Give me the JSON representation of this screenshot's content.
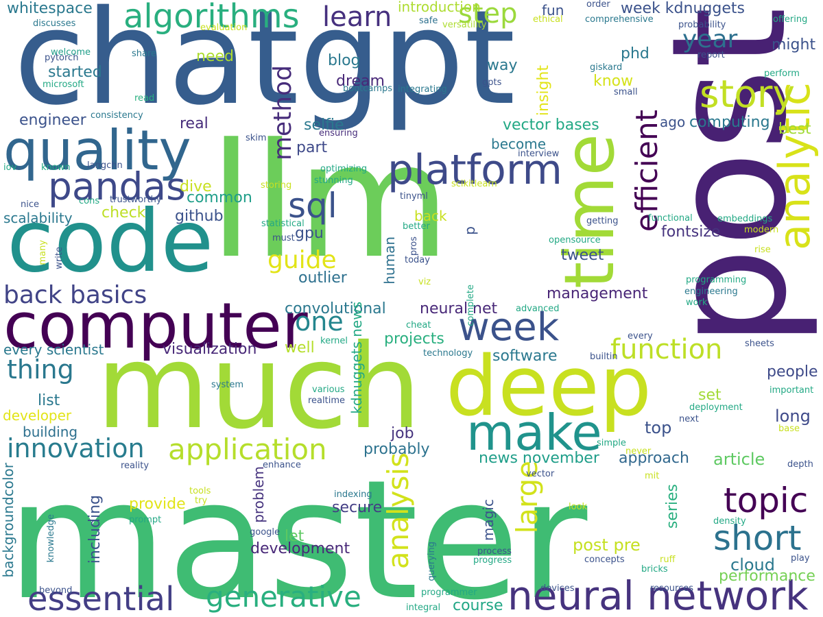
{
  "words": [
    {
      "text": "master",
      "color": "#3fbc73",
      "weight": 1.0
    },
    {
      "text": "chatgpt",
      "color": "#365d8d",
      "weight": 0.98
    },
    {
      "text": "llm",
      "color": "#6ccd5a",
      "weight": 0.96
    },
    {
      "text": "post",
      "color": "#482173",
      "weight": 0.95
    },
    {
      "text": "much",
      "color": "#a2da37",
      "weight": 0.9
    },
    {
      "text": "code",
      "color": "#21918c",
      "weight": 0.72
    },
    {
      "text": "deep",
      "color": "#c8e020",
      "weight": 0.7
    },
    {
      "text": "time",
      "color": "#a2da37",
      "weight": 0.66
    },
    {
      "text": "computer",
      "color": "#440154",
      "weight": 0.6
    },
    {
      "text": "quality",
      "color": "#31668e",
      "weight": 0.5
    },
    {
      "text": "analytic",
      "color": "#d8e219",
      "weight": 0.48
    },
    {
      "text": "make",
      "color": "#20938c",
      "weight": 0.45
    },
    {
      "text": "platform",
      "color": "#3e4a89",
      "weight": 0.42
    },
    {
      "text": "neural network",
      "color": "#46337e",
      "weight": 0.4
    },
    {
      "text": "week",
      "color": "#3b528b",
      "weight": 0.4
    },
    {
      "text": "story",
      "color": "#c2df23",
      "weight": 0.38
    },
    {
      "text": "pandas",
      "color": "#3e4989",
      "weight": 0.38
    },
    {
      "text": "algorithms",
      "color": "#29af7f",
      "weight": 0.35
    },
    {
      "text": "essential",
      "color": "#433e85",
      "weight": 0.34
    },
    {
      "text": "sql",
      "color": "#3b528b",
      "weight": 0.34
    },
    {
      "text": "efficient",
      "color": "#440154",
      "weight": 0.32
    },
    {
      "text": "short",
      "color": "#2c728e",
      "weight": 0.32
    },
    {
      "text": "topic",
      "color": "#440154",
      "weight": 0.32
    },
    {
      "text": "analysis",
      "color": "#d2e21b",
      "weight": 0.31
    },
    {
      "text": "large",
      "color": "#d2e21b",
      "weight": 0.3
    },
    {
      "text": "generative",
      "color": "#29af7f",
      "weight": 0.3
    },
    {
      "text": "application",
      "color": "#b5de2b",
      "weight": 0.3
    },
    {
      "text": "innovation",
      "color": "#287c8e",
      "weight": 0.29
    },
    {
      "text": "function",
      "color": "#bddf26",
      "weight": 0.28
    },
    {
      "text": "back basics",
      "color": "#414487",
      "weight": 0.26
    },
    {
      "text": "thing",
      "color": "#2a788e",
      "weight": 0.26
    },
    {
      "text": "one",
      "color": "#24868e",
      "weight": 0.26
    },
    {
      "text": "method",
      "color": "#472d7b",
      "weight": 0.26
    },
    {
      "text": "learn",
      "color": "#46307e",
      "weight": 0.25
    },
    {
      "text": "step",
      "color": "#9bd93c",
      "weight": 0.25
    },
    {
      "text": "year",
      "color": "#2d708e",
      "weight": 0.24
    },
    {
      "text": "guide",
      "color": "#e2e418",
      "weight": 0.23
    },
    {
      "text": "course",
      "color": "#21a685",
      "weight": 0.16
    },
    {
      "text": "cloud",
      "color": "#2a788e",
      "weight": 0.16
    },
    {
      "text": "performance",
      "color": "#75d054",
      "weight": 0.15
    },
    {
      "text": "post pre",
      "color": "#c5e021",
      "weight": 0.16
    },
    {
      "text": "management",
      "color": "#482576",
      "weight": 0.15
    },
    {
      "text": "news november",
      "color": "#1f9e89",
      "weight": 0.15
    },
    {
      "text": "approach",
      "color": "#31688e",
      "weight": 0.15
    },
    {
      "text": "article",
      "color": "#5ec962",
      "weight": 0.15
    },
    {
      "text": "top",
      "color": "#3b528b",
      "weight": 0.15
    },
    {
      "text": "long",
      "color": "#3e4989",
      "weight": 0.15
    },
    {
      "text": "development",
      "color": "#482878",
      "weight": 0.14
    },
    {
      "text": "secure",
      "color": "#433e85",
      "weight": 0.14
    },
    {
      "text": "job",
      "color": "#46337e",
      "weight": 0.14
    },
    {
      "text": "probably",
      "color": "#2c728e",
      "weight": 0.14
    },
    {
      "text": "projects",
      "color": "#29af7f",
      "weight": 0.14
    },
    {
      "text": "software",
      "color": "#2a788e",
      "weight": 0.14
    },
    {
      "text": "people",
      "color": "#3e4a89",
      "weight": 0.14
    },
    {
      "text": "set",
      "color": "#a2da37",
      "weight": 0.14
    },
    {
      "text": "visualization",
      "color": "#482878",
      "weight": 0.14
    },
    {
      "text": "well",
      "color": "#b5de2b",
      "weight": 0.14
    },
    {
      "text": "neural net",
      "color": "#482878",
      "weight": 0.14
    },
    {
      "text": "convolutional",
      "color": "#2a788e",
      "weight": 0.14
    },
    {
      "text": "outlier",
      "color": "#2d708e",
      "weight": 0.14
    },
    {
      "text": "tweet",
      "color": "#3b528b",
      "weight": 0.14
    },
    {
      "text": "fontsize",
      "color": "#46337e",
      "weight": 0.14
    },
    {
      "text": "gpu",
      "color": "#3b528b",
      "weight": 0.14
    },
    {
      "text": "part",
      "color": "#3e4989",
      "weight": 0.14
    },
    {
      "text": "selfie",
      "color": "#2a788e",
      "weight": 0.14
    },
    {
      "text": "dream",
      "color": "#482878",
      "weight": 0.14
    },
    {
      "text": "blog",
      "color": "#2a788e",
      "weight": 0.14
    },
    {
      "text": "github",
      "color": "#3b528b",
      "weight": 0.14
    },
    {
      "text": "common",
      "color": "#1f9e89",
      "weight": 0.14
    },
    {
      "text": "check",
      "color": "#bddf26",
      "weight": 0.14
    },
    {
      "text": "dive",
      "color": "#c8e020",
      "weight": 0.14
    },
    {
      "text": "real",
      "color": "#472d7b",
      "weight": 0.14
    },
    {
      "text": "started",
      "color": "#2a788e",
      "weight": 0.14
    },
    {
      "text": "engineer",
      "color": "#3b528b",
      "weight": 0.14
    },
    {
      "text": "need",
      "color": "#addc30",
      "weight": 0.14
    },
    {
      "text": "vector bases",
      "color": "#22a884",
      "weight": 0.14
    },
    {
      "text": "computing",
      "color": "#2a788e",
      "weight": 0.14
    },
    {
      "text": "best",
      "color": "#a2da37",
      "weight": 0.14
    },
    {
      "text": "phd",
      "color": "#2a788e",
      "weight": 0.14
    },
    {
      "text": "know",
      "color": "#d5e21a",
      "weight": 0.14
    },
    {
      "text": "way",
      "color": "#2a788e",
      "weight": 0.14
    },
    {
      "text": "might",
      "color": "#3b528b",
      "weight": 0.14
    },
    {
      "text": "week kdnuggets",
      "color": "#3b528b",
      "weight": 0.14
    },
    {
      "text": "introduction",
      "color": "#addc30",
      "weight": 0.14
    },
    {
      "text": "whitespace",
      "color": "#2a788e",
      "weight": 0.14
    },
    {
      "text": "fun",
      "color": "#3b528b",
      "weight": 0.14
    },
    {
      "text": "list",
      "color": "#2a788e",
      "weight": 0.14
    },
    {
      "text": "developer",
      "color": "#e2e418",
      "weight": 0.14
    },
    {
      "text": "building",
      "color": "#2d708e",
      "weight": 0.14
    },
    {
      "text": "scalability",
      "color": "#2a788e",
      "weight": 0.14
    },
    {
      "text": "every scientist",
      "color": "#2a788e",
      "weight": 0.14
    },
    {
      "text": "provide",
      "color": "#e2e418",
      "weight": 0.14
    },
    {
      "text": "let",
      "color": "#5ec962",
      "weight": 0.14
    },
    {
      "text": "back",
      "color": "#c8e020",
      "weight": 0.14
    },
    {
      "text": "become",
      "color": "#2a788e",
      "weight": 0.14
    },
    {
      "text": "ago",
      "color": "#3b528b",
      "weight": 0.14
    },
    {
      "text": "insight",
      "color": "#e2e418",
      "weight": 0.14
    },
    {
      "text": "human",
      "color": "#2d708e",
      "weight": 0.14
    },
    {
      "text": "kdnuggets news",
      "color": "#22a884",
      "weight": 0.14
    },
    {
      "text": "magic",
      "color": "#3b528b",
      "weight": 0.14
    },
    {
      "text": "including",
      "color": "#3b528b",
      "weight": 0.14
    },
    {
      "text": "problem",
      "color": "#46337e",
      "weight": 0.14
    },
    {
      "text": "series",
      "color": "#29af7f",
      "weight": 0.14
    },
    {
      "text": "backgroundcolor",
      "color": "#2a788e",
      "weight": 0.14
    },
    {
      "text": "p",
      "color": "#3b528b",
      "weight": 0.14
    },
    {
      "text": "discusses",
      "color": "#2a788e",
      "weight": 0.1
    },
    {
      "text": "pytorch",
      "color": "#3b528b",
      "weight": 0.1
    },
    {
      "text": "welcome",
      "color": "#1f9e89",
      "weight": 0.1
    },
    {
      "text": "share",
      "color": "#2a788e",
      "weight": 0.1
    },
    {
      "text": "microsoft",
      "color": "#22a884",
      "weight": 0.1
    },
    {
      "text": "read",
      "color": "#29af7f",
      "weight": 0.1
    },
    {
      "text": "consistency",
      "color": "#2a788e",
      "weight": 0.1
    },
    {
      "text": "evaluation",
      "color": "#c8e020",
      "weight": 0.1
    },
    {
      "text": "safe",
      "color": "#2d708e",
      "weight": 0.1
    },
    {
      "text": "versatility",
      "color": "#addc30",
      "weight": 0.1
    },
    {
      "text": "bootcamps",
      "color": "#2a788e",
      "weight": 0.1
    },
    {
      "text": "integrating",
      "color": "#2a788e",
      "weight": 0.1
    },
    {
      "text": "gpts",
      "color": "#3b528b",
      "weight": 0.1
    },
    {
      "text": "order",
      "color": "#3b528b",
      "weight": 0.1
    },
    {
      "text": "ethical",
      "color": "#c8e020",
      "weight": 0.1
    },
    {
      "text": "comprehensive",
      "color": "#2a788e",
      "weight": 0.1
    },
    {
      "text": "giskard",
      "color": "#2a788e",
      "weight": 0.1
    },
    {
      "text": "small",
      "color": "#3b528b",
      "weight": 0.1
    },
    {
      "text": "probability",
      "color": "#3b528b",
      "weight": 0.1
    },
    {
      "text": "report",
      "color": "#3b528b",
      "weight": 0.1
    },
    {
      "text": "offering",
      "color": "#22a884",
      "weight": 0.1
    },
    {
      "text": "perform",
      "color": "#22a884",
      "weight": 0.1
    },
    {
      "text": "skim",
      "color": "#3b528b",
      "weight": 0.1
    },
    {
      "text": "ensuring",
      "color": "#472d7b",
      "weight": 0.1
    },
    {
      "text": "interview",
      "color": "#3b528b",
      "weight": 0.1
    },
    {
      "text": "iov",
      "color": "#22a884",
      "weight": 0.1
    },
    {
      "text": "known",
      "color": "#22a884",
      "weight": 0.1
    },
    {
      "text": "langchn",
      "color": "#3b528b",
      "weight": 0.1
    },
    {
      "text": "cons",
      "color": "#22a884",
      "weight": 0.1
    },
    {
      "text": "trustworthy",
      "color": "#3b528b",
      "weight": 0.1
    },
    {
      "text": "nice",
      "color": "#3b528b",
      "weight": 0.1
    },
    {
      "text": "optimizing",
      "color": "#22a884",
      "weight": 0.1
    },
    {
      "text": "stunning",
      "color": "#22a884",
      "weight": 0.1
    },
    {
      "text": "storing",
      "color": "#c8e020",
      "weight": 0.1
    },
    {
      "text": "tinyml",
      "color": "#3b528b",
      "weight": 0.1
    },
    {
      "text": "scikitlearn",
      "color": "#c8e020",
      "weight": 0.1
    },
    {
      "text": "statistical",
      "color": "#22a884",
      "weight": 0.1
    },
    {
      "text": "must",
      "color": "#3b528b",
      "weight": 0.1
    },
    {
      "text": "better",
      "color": "#22a884",
      "weight": 0.1
    },
    {
      "text": "pros",
      "color": "#3b528b",
      "weight": 0.1
    },
    {
      "text": "today",
      "color": "#3b528b",
      "weight": 0.1
    },
    {
      "text": "getting",
      "color": "#3b528b",
      "weight": 0.1
    },
    {
      "text": "functional",
      "color": "#22a884",
      "weight": 0.1
    },
    {
      "text": "embeddings",
      "color": "#22a884",
      "weight": 0.1
    },
    {
      "text": "modern",
      "color": "#c8e020",
      "weight": 0.1
    },
    {
      "text": "opensource",
      "color": "#22a884",
      "weight": 0.1
    },
    {
      "text": "rise",
      "color": "#c8e020",
      "weight": 0.1
    },
    {
      "text": "many",
      "color": "#c8e020",
      "weight": 0.1
    },
    {
      "text": "write",
      "color": "#3b528b",
      "weight": 0.1
    },
    {
      "text": "viz",
      "color": "#c8e020",
      "weight": 0.1
    },
    {
      "text": "complete",
      "color": "#22a884",
      "weight": 0.1
    },
    {
      "text": "advanced",
      "color": "#22a884",
      "weight": 0.1
    },
    {
      "text": "programming",
      "color": "#22a884",
      "weight": 0.1
    },
    {
      "text": "engineering",
      "color": "#2a788e",
      "weight": 0.1
    },
    {
      "text": "work",
      "color": "#22a884",
      "weight": 0.1
    },
    {
      "text": "cheat",
      "color": "#22a884",
      "weight": 0.1
    },
    {
      "text": "kernel",
      "color": "#22a884",
      "weight": 0.1
    },
    {
      "text": "technology",
      "color": "#2a788e",
      "weight": 0.1
    },
    {
      "text": "every",
      "color": "#3b528b",
      "weight": 0.1
    },
    {
      "text": "sheets",
      "color": "#3b528b",
      "weight": 0.1
    },
    {
      "text": "builtin",
      "color": "#3b528b",
      "weight": 0.1
    },
    {
      "text": "system",
      "color": "#2a788e",
      "weight": 0.1
    },
    {
      "text": "various",
      "color": "#22a884",
      "weight": 0.1
    },
    {
      "text": "realtime",
      "color": "#3b528b",
      "weight": 0.1
    },
    {
      "text": "important",
      "color": "#22a884",
      "weight": 0.1
    },
    {
      "text": "deployment",
      "color": "#22a884",
      "weight": 0.1
    },
    {
      "text": "next",
      "color": "#3b528b",
      "weight": 0.1
    },
    {
      "text": "base",
      "color": "#c8e020",
      "weight": 0.1
    },
    {
      "text": "simple",
      "color": "#22a884",
      "weight": 0.1
    },
    {
      "text": "never",
      "color": "#c8e020",
      "weight": 0.1
    },
    {
      "text": "reality",
      "color": "#3b528b",
      "weight": 0.1
    },
    {
      "text": "enhance",
      "color": "#3b528b",
      "weight": 0.1
    },
    {
      "text": "vector",
      "color": "#3b528b",
      "weight": 0.1
    },
    {
      "text": "mit",
      "color": "#c8e020",
      "weight": 0.1
    },
    {
      "text": "depth",
      "color": "#3b528b",
      "weight": 0.1
    },
    {
      "text": "tools",
      "color": "#c8e020",
      "weight": 0.1
    },
    {
      "text": "try",
      "color": "#c8e020",
      "weight": 0.1
    },
    {
      "text": "indexing",
      "color": "#2a788e",
      "weight": 0.1
    },
    {
      "text": "look",
      "color": "#c8e020",
      "weight": 0.1
    },
    {
      "text": "prompt",
      "color": "#22a884",
      "weight": 0.1
    },
    {
      "text": "knowledge",
      "color": "#2a788e",
      "weight": 0.1
    },
    {
      "text": "google",
      "color": "#3b528b",
      "weight": 0.1
    },
    {
      "text": "density",
      "color": "#22a884",
      "weight": 0.1
    },
    {
      "text": "querying",
      "color": "#2a788e",
      "weight": 0.1
    },
    {
      "text": "process",
      "color": "#3b528b",
      "weight": 0.1
    },
    {
      "text": "progress",
      "color": "#22a884",
      "weight": 0.1
    },
    {
      "text": "concepts",
      "color": "#3b528b",
      "weight": 0.1
    },
    {
      "text": "ruff",
      "color": "#c8e020",
      "weight": 0.1
    },
    {
      "text": "bricks",
      "color": "#22a884",
      "weight": 0.1
    },
    {
      "text": "play",
      "color": "#3b528b",
      "weight": 0.1
    },
    {
      "text": "beyond",
      "color": "#3b528b",
      "weight": 0.1
    },
    {
      "text": "programmer",
      "color": "#22a884",
      "weight": 0.1
    },
    {
      "text": "integral",
      "color": "#22a884",
      "weight": 0.1
    },
    {
      "text": "devices",
      "color": "#3b528b",
      "weight": 0.1
    },
    {
      "text": "resources",
      "color": "#3b528b",
      "weight": 0.1
    }
  ]
}
